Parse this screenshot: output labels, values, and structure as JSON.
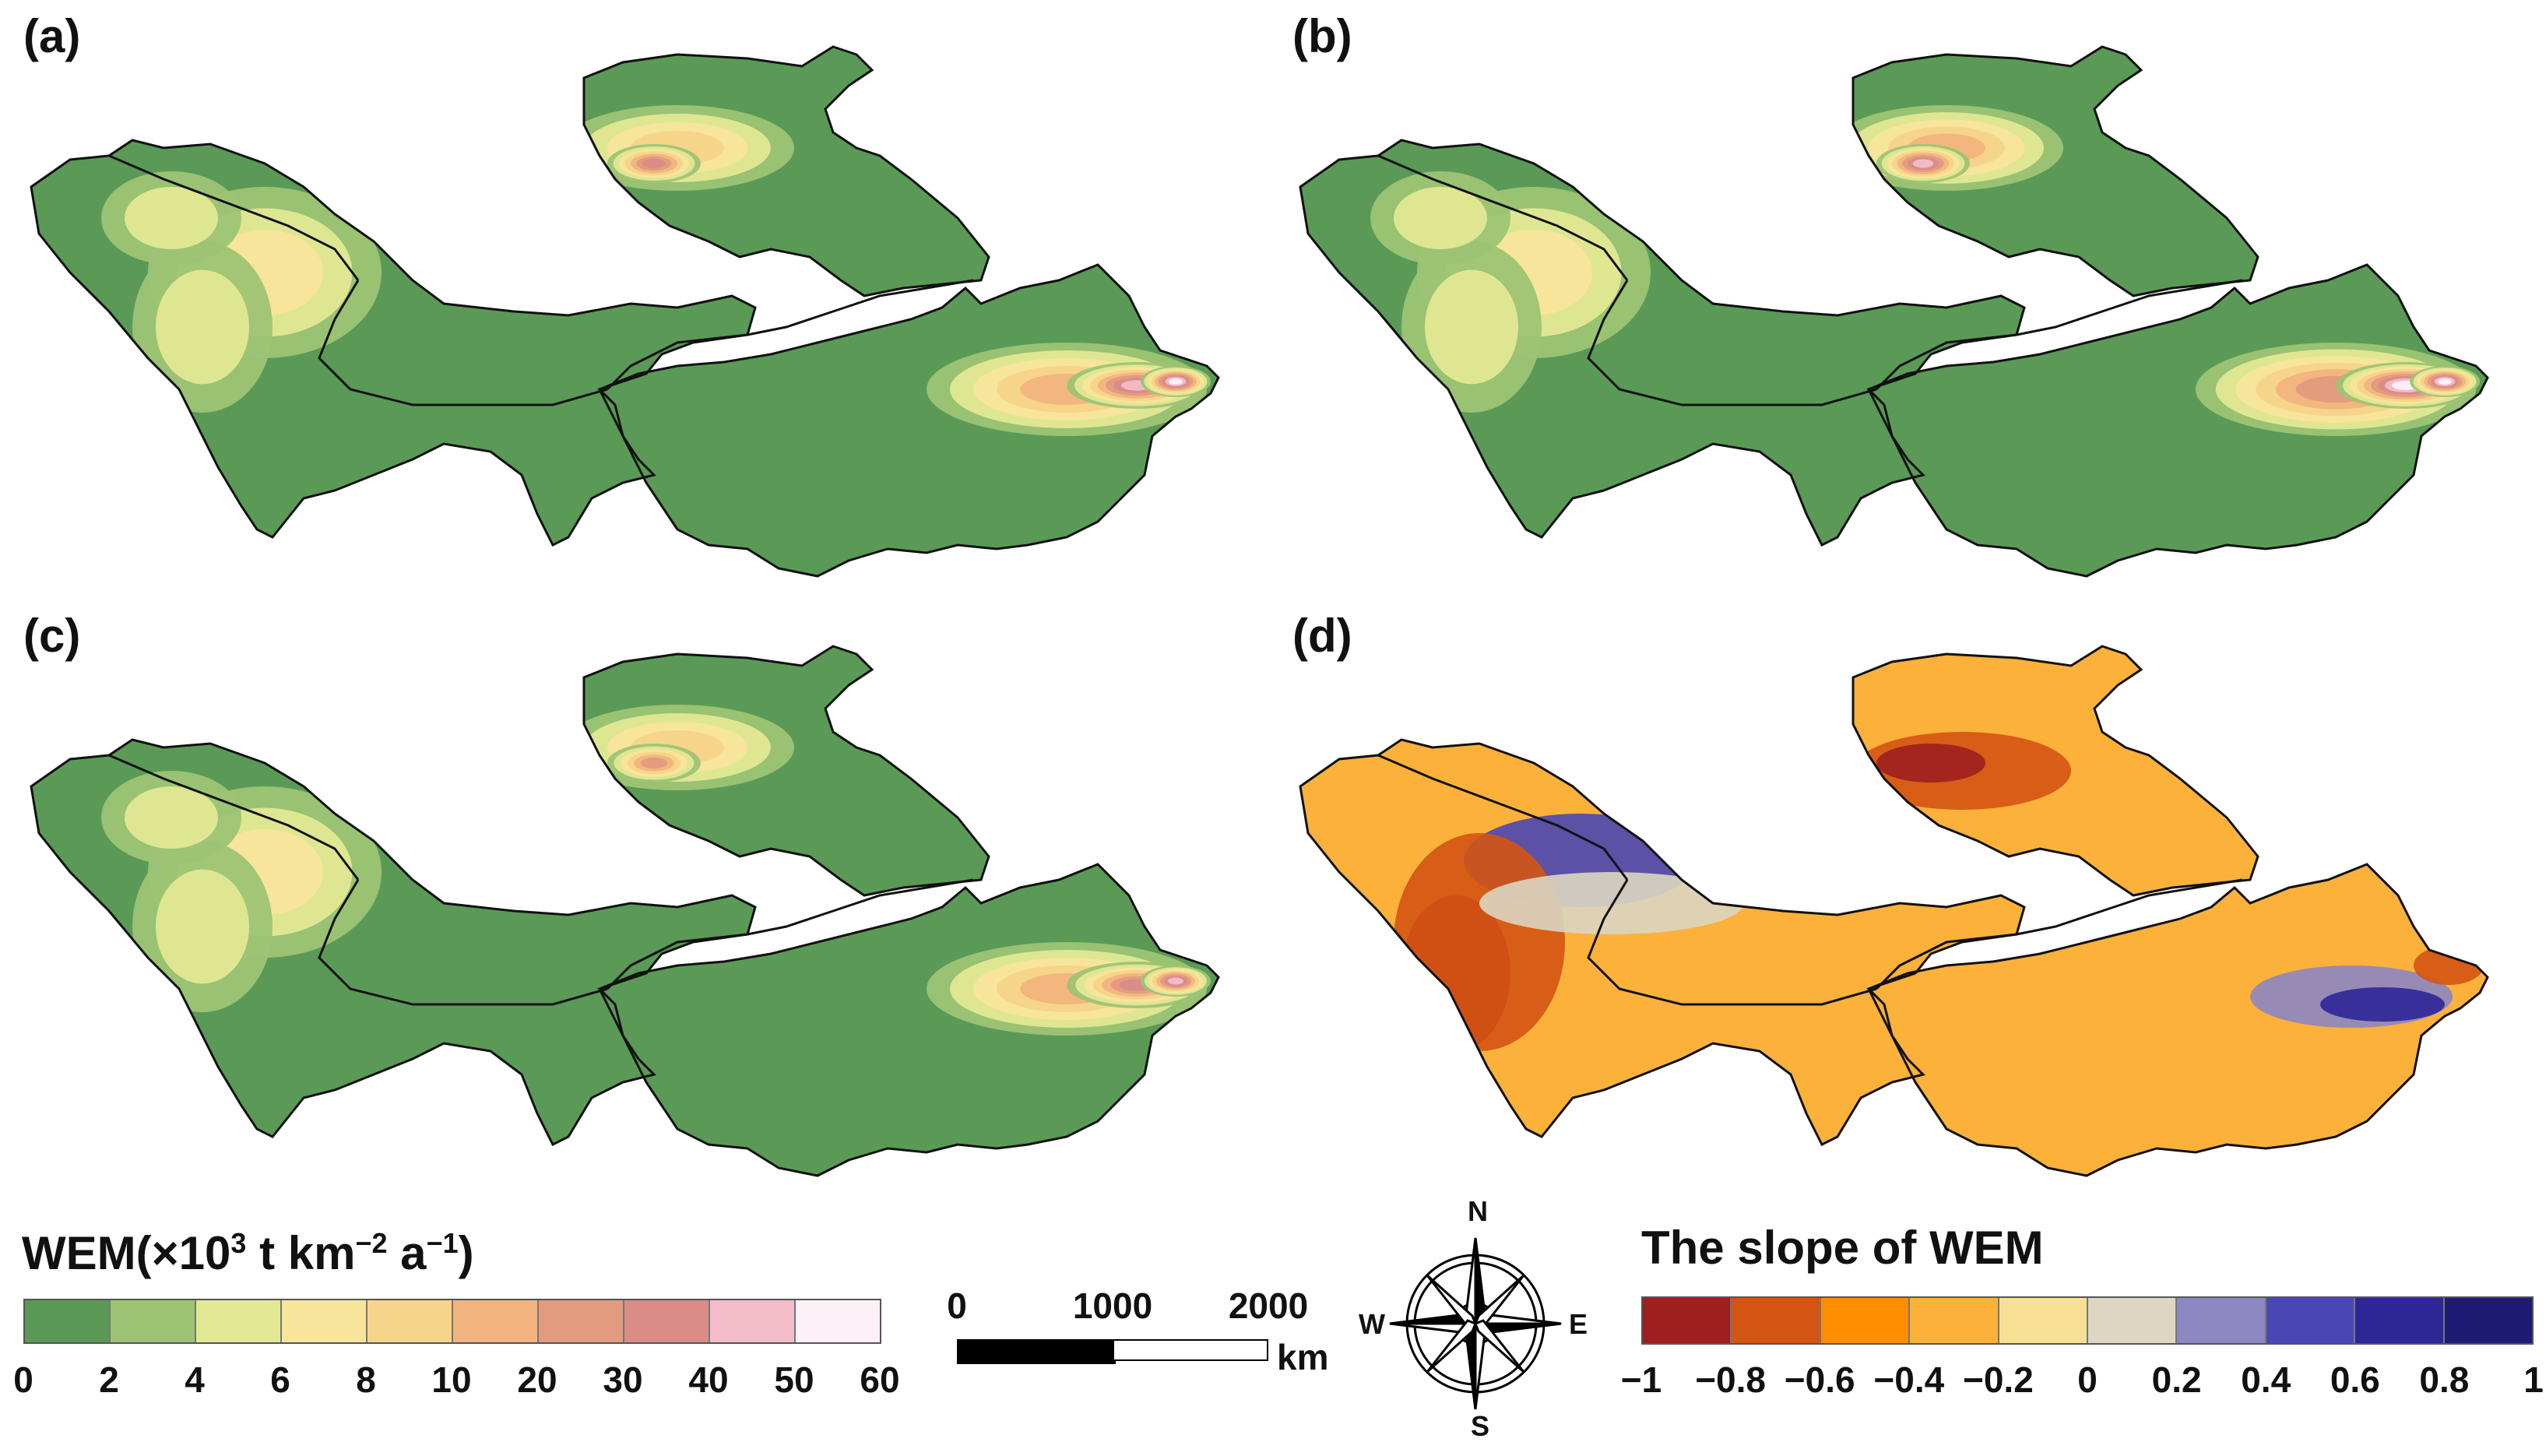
{
  "panels": [
    {
      "id": "a",
      "label": "(a)"
    },
    {
      "id": "b",
      "label": "(b)"
    },
    {
      "id": "c",
      "label": "(c)"
    },
    {
      "id": "d",
      "label": "(d)"
    }
  ],
  "wem_legend": {
    "title_main": "WEM(×10",
    "title_sup1": "3",
    "title_mid": " t km",
    "title_sup2": "−2",
    "title_mid2": " a",
    "title_sup3": "−1",
    "title_end": ")",
    "colors": [
      "#5a9a56",
      "#9dc474",
      "#e3e894",
      "#f8e59c",
      "#f6d48a",
      "#f2b47e",
      "#e39b80",
      "#d98c88",
      "#f3bdc9",
      "#fdf1f8"
    ],
    "ticks": [
      "0",
      "2",
      "4",
      "6",
      "8",
      "10",
      "20",
      "30",
      "40",
      "50",
      "60"
    ]
  },
  "slope_legend": {
    "title": "The slope of WEM",
    "colors": [
      "#9e1f1e",
      "#d45413",
      "#ff8d00",
      "#fbb13a",
      "#f7e094",
      "#dcd6c2",
      "#8c86c3",
      "#4a47b4",
      "#2e2597",
      "#1f1a73"
    ],
    "ticks": [
      "−1",
      "−0.8",
      "−0.6",
      "−0.4",
      "−0.2",
      "0",
      "0.2",
      "0.4",
      "0.6",
      "0.8",
      "1"
    ]
  },
  "scale_bar": {
    "labels": [
      "0",
      "1000",
      "2000"
    ],
    "unit": "km"
  },
  "compass": {
    "n": "N",
    "s": "S",
    "e": "E",
    "w": "W"
  },
  "map_colors": {
    "base_green": "#5a9a56",
    "base_orange": "#fbb13a",
    "border": "#111111"
  }
}
